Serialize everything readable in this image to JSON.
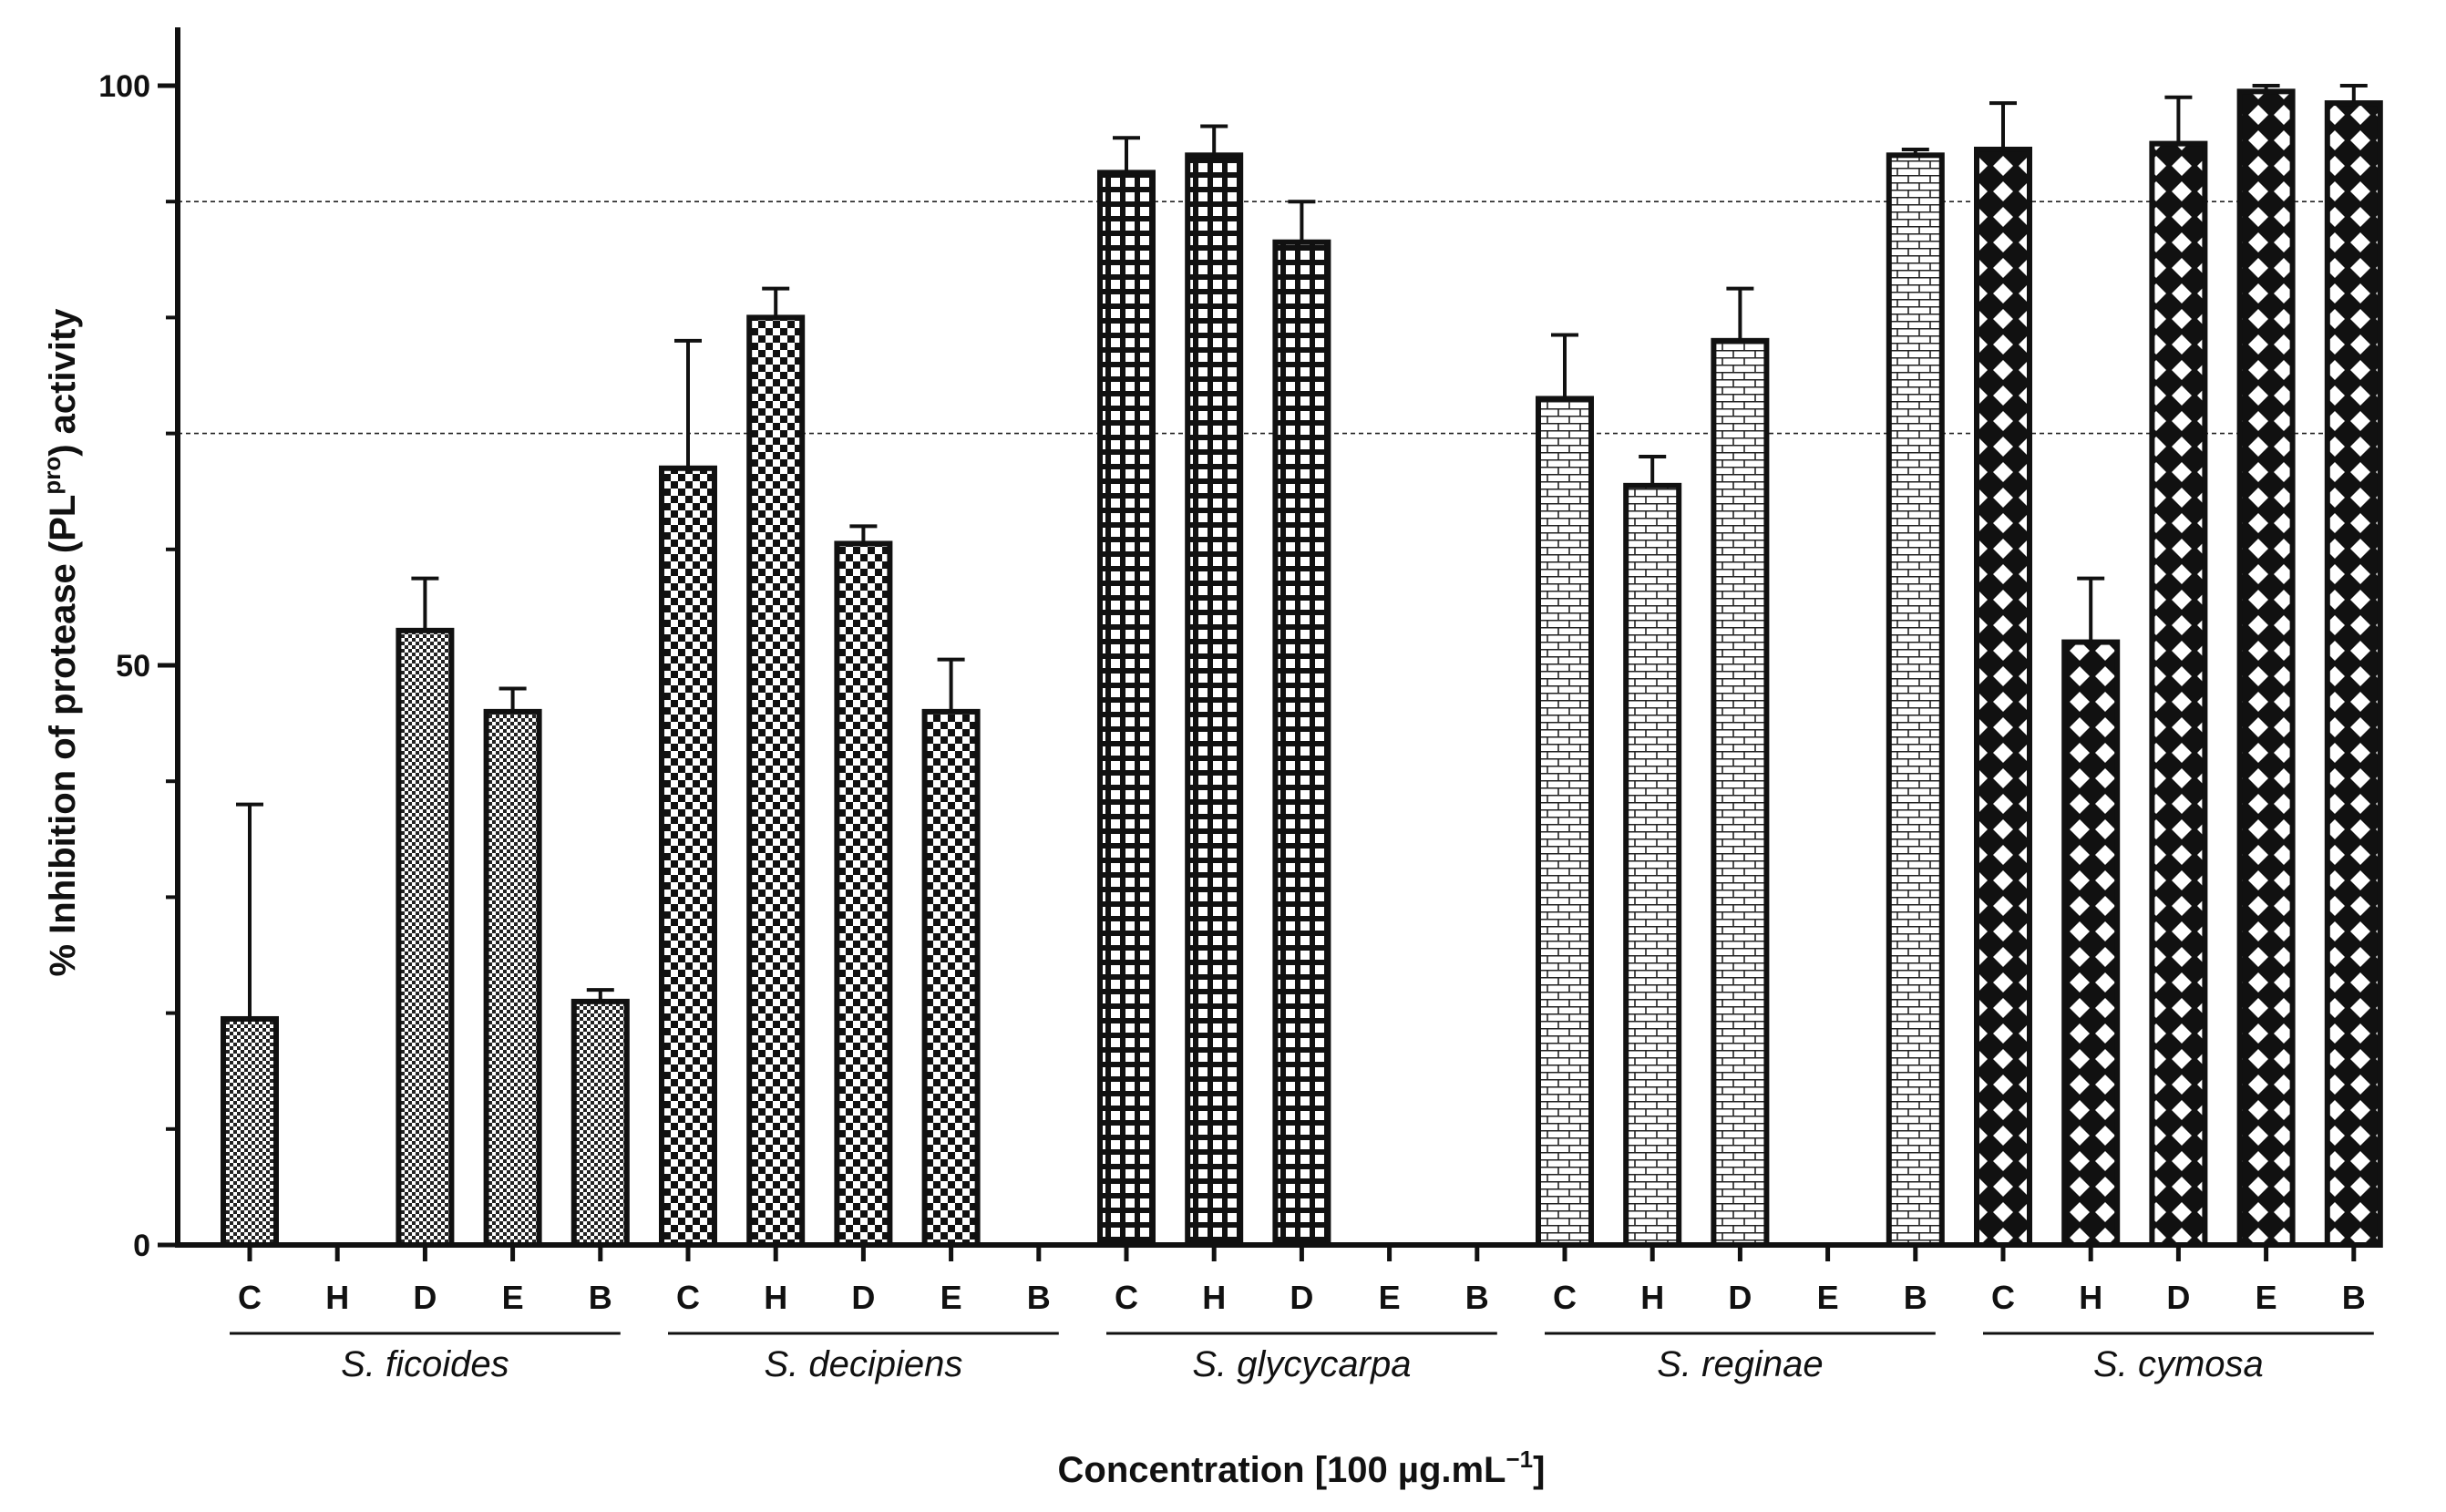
{
  "chart_data": {
    "type": "bar",
    "title": "",
    "ylabel": "% Inhibition of protease (PL",
    "ylabel_superscript": "pro",
    "ylabel_suffix": ") activity",
    "xlabel": "Concentration [100 µg.mL",
    "xlabel_superscript": "−1",
    "xlabel_suffix": "]",
    "ylim": [
      0,
      105
    ],
    "yticks": [
      0,
      50,
      100
    ],
    "reference_lines": [
      70,
      90
    ],
    "groups": [
      {
        "name": "S. ficoides",
        "pattern": "checker-fine",
        "categories": [
          "C",
          "H",
          "D",
          "E",
          "B"
        ],
        "values": [
          19.5,
          null,
          53,
          46,
          21
        ],
        "errors": [
          18.5,
          null,
          4.5,
          2,
          1
        ]
      },
      {
        "name": "S. decipiens",
        "pattern": "checker-coarse",
        "categories": [
          "C",
          "H",
          "D",
          "E",
          "B"
        ],
        "values": [
          67,
          80,
          60.5,
          46,
          null
        ],
        "errors": [
          11,
          2.5,
          1.5,
          4.5,
          null
        ]
      },
      {
        "name": "S. glycycarpa",
        "pattern": "grid",
        "categories": [
          "C",
          "H",
          "D",
          "E",
          "B"
        ],
        "values": [
          92.5,
          94,
          86.5,
          null,
          null
        ],
        "errors": [
          3,
          2.5,
          3.5,
          null,
          null
        ]
      },
      {
        "name": "S. reginae",
        "pattern": "brick",
        "categories": [
          "C",
          "H",
          "D",
          "E",
          "B"
        ],
        "values": [
          73,
          65.5,
          78,
          null,
          94
        ],
        "errors": [
          5.5,
          2.5,
          4.5,
          null,
          0.5
        ]
      },
      {
        "name": "S. cymosa",
        "pattern": "diamond",
        "categories": [
          "C",
          "H",
          "D",
          "E",
          "B"
        ],
        "values": [
          94.5,
          52,
          95,
          99.5,
          98.5
        ],
        "errors": [
          4,
          5.5,
          4,
          0.5,
          1.5
        ]
      }
    ]
  }
}
